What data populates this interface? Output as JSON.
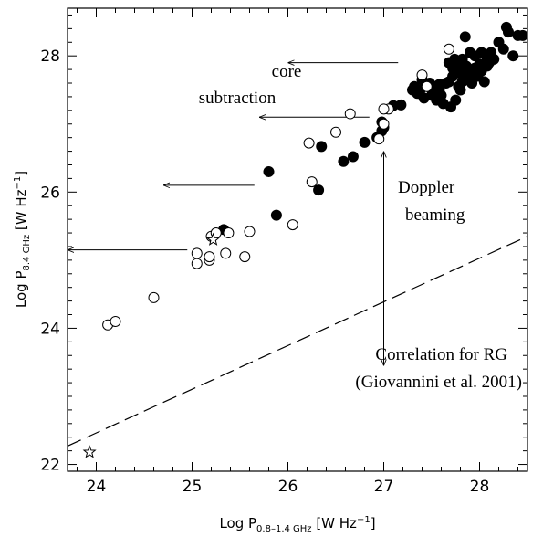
{
  "chart_data": {
    "type": "scatter",
    "title": "",
    "xlabel": {
      "base": "Log P",
      "sub": "0.8–1.4 GHz",
      "unit": " [W Hz",
      "exp": "−1",
      "close": "]"
    },
    "ylabel": {
      "base": "Log P",
      "sub": "8.4 GHz",
      "unit": " [W Hz",
      "exp": "−1",
      "close": "]"
    },
    "xlim": [
      23.7,
      28.5
    ],
    "ylim": [
      21.9,
      28.7
    ],
    "xticks": [
      24,
      25,
      26,
      27,
      28
    ],
    "yticks": [
      22,
      24,
      26,
      28
    ],
    "xtick_labels": [
      "24",
      "25",
      "26",
      "27",
      "28"
    ],
    "ytick_labels": [
      "22",
      "24",
      "26",
      "28"
    ],
    "grid": false,
    "series": [
      {
        "marker": "filled-circle",
        "points": [
          [
            25.33,
            25.45
          ],
          [
            25.88,
            25.66
          ],
          [
            25.8,
            26.3
          ],
          [
            26.32,
            26.03
          ],
          [
            26.35,
            26.67
          ],
          [
            26.58,
            26.45
          ],
          [
            26.68,
            26.52
          ],
          [
            26.8,
            26.73
          ],
          [
            26.93,
            26.8
          ],
          [
            26.98,
            26.9
          ],
          [
            27.0,
            26.95
          ],
          [
            26.98,
            27.03
          ],
          [
            27.1,
            27.27
          ],
          [
            27.18,
            27.28
          ],
          [
            27.3,
            27.5
          ],
          [
            27.32,
            27.55
          ],
          [
            27.35,
            27.45
          ],
          [
            27.38,
            27.5
          ],
          [
            27.42,
            27.38
          ],
          [
            27.45,
            27.55
          ],
          [
            27.4,
            27.65
          ],
          [
            27.48,
            27.6
          ],
          [
            27.5,
            27.42
          ],
          [
            27.52,
            27.5
          ],
          [
            27.55,
            27.35
          ],
          [
            27.58,
            27.58
          ],
          [
            27.6,
            27.42
          ],
          [
            27.62,
            27.3
          ],
          [
            27.65,
            27.6
          ],
          [
            27.68,
            27.62
          ],
          [
            27.7,
            27.25
          ],
          [
            27.72,
            27.7
          ],
          [
            27.75,
            27.35
          ],
          [
            27.78,
            27.55
          ],
          [
            27.8,
            27.75
          ],
          [
            27.82,
            27.62
          ],
          [
            27.85,
            27.7
          ],
          [
            27.88,
            27.8
          ],
          [
            27.9,
            27.75
          ],
          [
            27.92,
            27.6
          ],
          [
            27.95,
            27.82
          ],
          [
            27.98,
            27.7
          ],
          [
            28.0,
            27.88
          ],
          [
            28.02,
            27.78
          ],
          [
            28.05,
            27.62
          ],
          [
            28.08,
            27.85
          ],
          [
            28.1,
            27.9
          ],
          [
            28.15,
            27.95
          ],
          [
            28.2,
            28.2
          ],
          [
            28.25,
            28.1
          ],
          [
            28.3,
            28.35
          ],
          [
            28.35,
            28.0
          ],
          [
            28.4,
            28.3
          ],
          [
            28.45,
            28.3
          ],
          [
            27.68,
            27.9
          ],
          [
            27.72,
            27.82
          ],
          [
            27.74,
            27.95
          ],
          [
            27.78,
            27.88
          ],
          [
            27.82,
            27.95
          ],
          [
            27.86,
            27.85
          ],
          [
            27.9,
            28.05
          ],
          [
            27.95,
            28.0
          ],
          [
            28.02,
            28.05
          ],
          [
            28.08,
            27.95
          ],
          [
            28.12,
            28.05
          ],
          [
            27.85,
            28.28
          ],
          [
            28.28,
            28.42
          ],
          [
            27.8,
            27.5
          ],
          [
            27.88,
            27.65
          ],
          [
            27.58,
            27.5
          ]
        ]
      },
      {
        "marker": "open-circle",
        "points": [
          [
            24.12,
            24.05
          ],
          [
            24.2,
            24.1
          ],
          [
            24.6,
            24.45
          ],
          [
            25.05,
            25.1
          ],
          [
            25.05,
            24.95
          ],
          [
            25.18,
            25.0
          ],
          [
            25.18,
            25.05
          ],
          [
            25.2,
            25.35
          ],
          [
            25.25,
            25.4
          ],
          [
            25.35,
            25.1
          ],
          [
            25.38,
            25.4
          ],
          [
            25.55,
            25.05
          ],
          [
            25.6,
            25.42
          ],
          [
            26.05,
            25.52
          ],
          [
            26.22,
            26.72
          ],
          [
            26.25,
            26.15
          ],
          [
            26.5,
            26.88
          ],
          [
            26.65,
            27.15
          ],
          [
            26.95,
            26.78
          ],
          [
            27.0,
            27.0
          ],
          [
            27.05,
            27.22
          ],
          [
            27.4,
            27.72
          ],
          [
            27.45,
            27.55
          ],
          [
            27.68,
            28.1
          ],
          [
            27.0,
            27.22
          ]
        ]
      },
      {
        "marker": "star",
        "points": [
          [
            23.93,
            22.18
          ],
          [
            25.22,
            25.3
          ]
        ]
      }
    ],
    "lines": [
      {
        "style": "dashed",
        "from": [
          23.7,
          22.27
        ],
        "to": [
          28.5,
          25.35
        ]
      }
    ],
    "arrows": [
      {
        "from": [
          27.0,
          26.6
        ],
        "to": [
          27.0,
          23.45
        ],
        "double": true
      },
      {
        "from": [
          27.15,
          27.9
        ],
        "to": [
          26.0,
          27.9
        ]
      },
      {
        "from": [
          26.85,
          27.1
        ],
        "to": [
          25.7,
          27.1
        ]
      },
      {
        "from": [
          25.65,
          26.1
        ],
        "to": [
          24.7,
          26.1
        ]
      },
      {
        "from": [
          24.95,
          25.15
        ],
        "to": [
          23.7,
          25.15
        ]
      }
    ],
    "annotations": {
      "core_line1": "core",
      "core_line2": "subtraction",
      "doppler_line1": "Doppler",
      "doppler_line2": "beaming",
      "corr_line1": "Correlation for RG",
      "corr_line2": "(Giovannini et al. 2001)"
    }
  }
}
